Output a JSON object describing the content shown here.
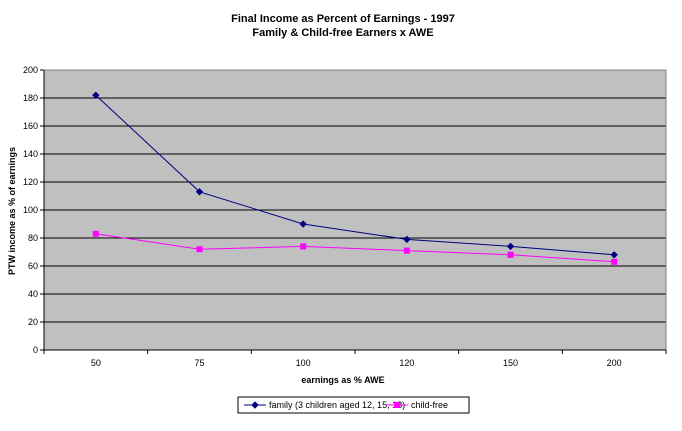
{
  "chart_data": {
    "type": "line",
    "title": "Final Income as Percent of Earnings - 1997",
    "subtitle": "Family & Child-free Earners x AWE",
    "xlabel": "earnings as % AWE",
    "ylabel": "PTW income as % of earnings",
    "categories": [
      "50",
      "75",
      "100",
      "120",
      "150",
      "200"
    ],
    "ylim": [
      0,
      200
    ],
    "yticks": [
      0,
      20,
      40,
      60,
      80,
      100,
      120,
      140,
      160,
      180,
      200
    ],
    "grid": true,
    "legend_position": "bottom",
    "series": [
      {
        "name": "family (3 children aged 12, 15, 18)",
        "values": [
          182,
          113,
          90,
          79,
          74,
          68
        ],
        "color": "#000080",
        "marker": "diamond"
      },
      {
        "name": "child-free",
        "values": [
          83,
          72,
          74,
          71,
          68,
          63
        ],
        "color": "#ff00ff",
        "marker": "square"
      }
    ],
    "plot_background": "#c0c0c0"
  }
}
